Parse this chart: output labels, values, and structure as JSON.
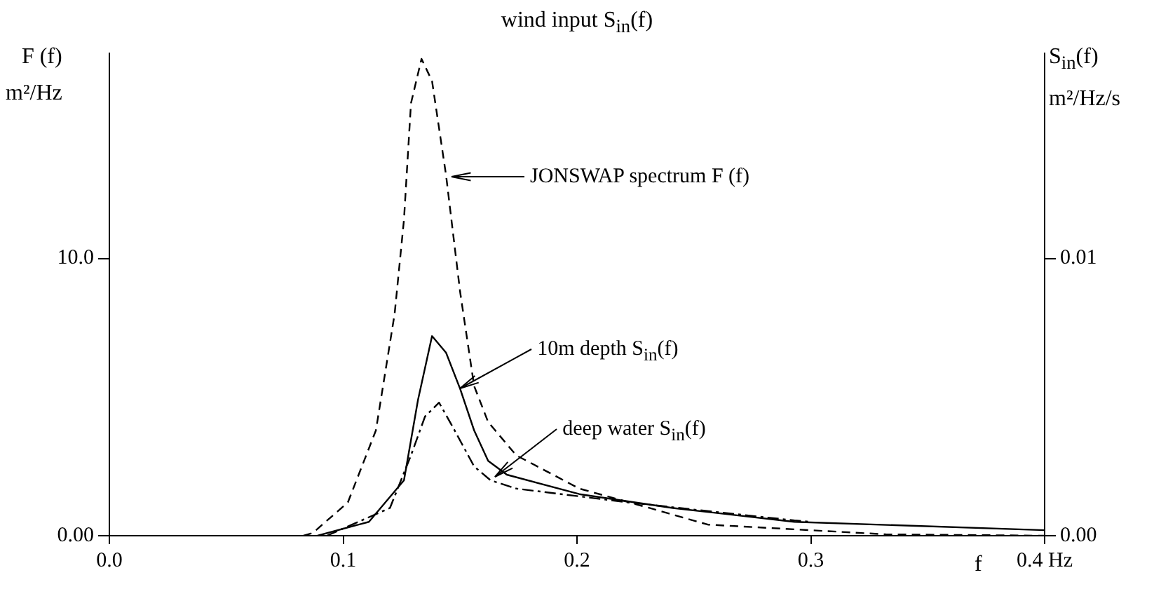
{
  "chart_data": {
    "type": "line",
    "title": "wind input S$_{in}$(f)",
    "xlabel": "f",
    "ylabel": "F (f)\nm²/Hz",
    "y2label": "S$_{in}$(f)\nm²/Hz/s",
    "xlim": [
      0,
      0.4
    ],
    "xticks": [
      {
        "value": 0,
        "label": "0.0"
      },
      0.1,
      0.2,
      0.3,
      {
        "value": 0.4,
        "label": "0.4 Hz"
      }
    ],
    "ylim": [
      0,
      17.4
    ],
    "yticks": [
      {
        "value": 0,
        "label": "0.00"
      },
      {
        "value": 10,
        "label": "10.0"
      }
    ],
    "y2lim": [
      0,
      0.0174
    ],
    "y2ticks": [
      {
        "value": 0,
        "label": "0.00"
      },
      0.01
    ],
    "grid": false,
    "legend": false,
    "marker": "none",
    "series": [
      {
        "color": "#000000",
        "line_style": "dashed",
        "x": [
          0.083,
          0.087,
          0.102,
          0.114,
          0.122,
          0.126,
          0.129,
          0.1335,
          0.138,
          0.144,
          0.15,
          0.156,
          0.162,
          0.174,
          0.201,
          0.231,
          0.256,
          0.332,
          0.4
        ],
        "values": [
          0,
          0.1,
          1.2,
          3.8,
          8.0,
          11.4,
          15.6,
          17.2,
          16.4,
          13.0,
          8.8,
          5.4,
          4.1,
          2.9,
          1.7,
          1.0,
          0.4,
          0.05,
          0
        ]
      },
      {
        "color": "#000000",
        "line_style": "solid",
        "axis": "y2",
        "x": [
          0.089,
          0.111,
          0.126,
          0.132,
          0.138,
          0.144,
          0.15,
          0.156,
          0.162,
          0.17,
          0.201,
          0.241,
          0.293,
          0.4
        ],
        "values": [
          0,
          0.0005,
          0.002,
          0.0049,
          0.0072,
          0.0066,
          0.0053,
          0.0038,
          0.0027,
          0.0022,
          0.0015,
          0.001,
          0.0005,
          0.0002
        ]
      },
      {
        "color": "#000000",
        "line_style": "dotted",
        "axis": "y2",
        "x": [
          0.093,
          0.12,
          0.129,
          0.135,
          0.141,
          0.147,
          0.156,
          0.163,
          0.174,
          0.222,
          0.293,
          0.3
        ],
        "values": [
          0,
          0.001,
          0.0029,
          0.0043,
          0.0048,
          0.0039,
          0.0025,
          0.002,
          0.0017,
          0.0012,
          0.00055,
          0.0005
        ]
      }
    ],
    "annotations": [
      "JONSWAP spectrum F (f)",
      {
        "text": "10m depth  S$_{in}$(f)",
        "x": 0.15,
        "y": 5.3
      },
      {
        "text": "deep water  S$_{in}$(f)",
        "x": 0.165,
        "y": 2.1
      }
    ]
  }
}
